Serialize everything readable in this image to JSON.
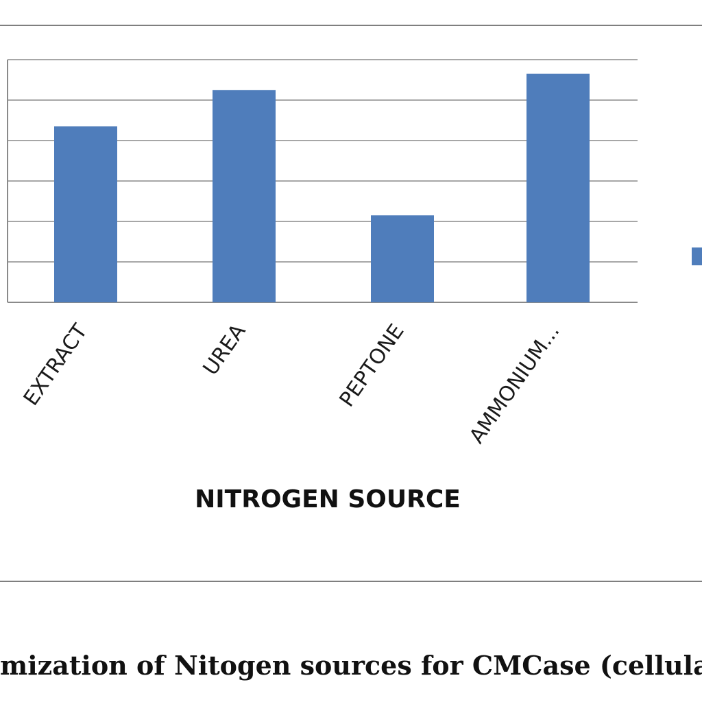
{
  "chart_data": {
    "type": "bar",
    "categories": [
      "EXTRACT",
      "UREA",
      "PEPTONE",
      "AMMONIUM..."
    ],
    "values": [
      4.35,
      5.25,
      2.15,
      5.65
    ],
    "title": "",
    "xlabel": "NITROGEN SOURCE",
    "ylabel": "",
    "ylim": [
      0,
      6
    ],
    "grid": true,
    "legend": "right",
    "bar_color": "#4F7DBB",
    "gridline_color": "#8a8a8a"
  },
  "caption": "mization  of Nitogen sources for CMCase (cellulas"
}
